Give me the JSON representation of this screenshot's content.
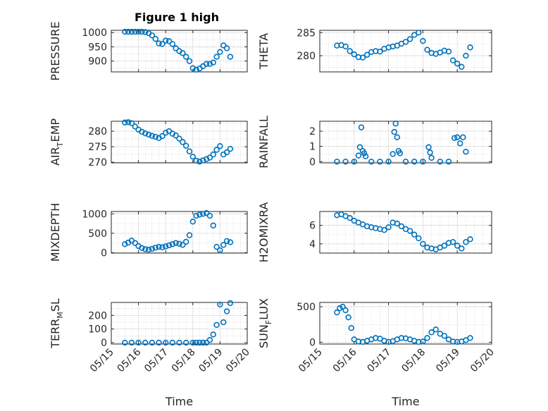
{
  "figure": {
    "title": "Figure 1 high",
    "marker_color": "#0072bd",
    "grid": "on (major + minor)",
    "background": "#ffffff"
  },
  "chart_data": [
    {
      "type": "scatter",
      "id": "pressure",
      "ylabel": "PRESSURE",
      "ylabel_sub": "",
      "ylabel_tail": "",
      "xlabel": "",
      "show_xticklabels": false,
      "ylim": [
        862,
        1008
      ],
      "yticks": [
        900,
        950,
        1000
      ],
      "ytick_labels": [
        "900",
        "950",
        "1000"
      ],
      "x": [
        "2023-05-15T12:00",
        "2023-05-15T15:00",
        "2023-05-15T18:00",
        "2023-05-15T21:00",
        "2023-05-16T00:00",
        "2023-05-16T03:00",
        "2023-05-16T06:00",
        "2023-05-16T09:00",
        "2023-05-16T12:00",
        "2023-05-16T15:00",
        "2023-05-16T18:00",
        "2023-05-16T21:00",
        "2023-05-17T00:00",
        "2023-05-17T03:00",
        "2023-05-17T06:00",
        "2023-05-17T09:00",
        "2023-05-17T12:00",
        "2023-05-17T15:00",
        "2023-05-17T18:00",
        "2023-05-17T21:00",
        "2023-05-18T00:00",
        "2023-05-18T03:00",
        "2023-05-18T06:00",
        "2023-05-18T09:00",
        "2023-05-18T12:00",
        "2023-05-18T15:00",
        "2023-05-18T18:00",
        "2023-05-18T21:00",
        "2023-05-19T00:00",
        "2023-05-19T03:00",
        "2023-05-19T06:00",
        "2023-05-19T09:00"
      ],
      "y": [
        1003,
        1003,
        1003,
        1003,
        1003,
        1003,
        1002,
        998,
        990,
        978,
        962,
        960,
        972,
        970,
        960,
        945,
        935,
        928,
        915,
        900,
        875,
        870,
        874,
        882,
        890,
        890,
        895,
        915,
        932,
        955,
        945,
        915
      ]
    },
    {
      "type": "scatter",
      "id": "theta",
      "ylabel": "THETA",
      "ylabel_sub": "",
      "ylabel_tail": "",
      "xlabel": "",
      "show_xticklabels": false,
      "ylim": [
        276.5,
        285.5
      ],
      "yticks": [
        280,
        285
      ],
      "ytick_labels": [
        "280",
        "285"
      ],
      "x": [
        "2023-05-15T12:00",
        "2023-05-15T15:00",
        "2023-05-15T18:00",
        "2023-05-15T21:00",
        "2023-05-16T00:00",
        "2023-05-16T03:00",
        "2023-05-16T06:00",
        "2023-05-16T09:00",
        "2023-05-16T12:00",
        "2023-05-16T15:00",
        "2023-05-16T18:00",
        "2023-05-16T21:00",
        "2023-05-17T00:00",
        "2023-05-17T03:00",
        "2023-05-17T06:00",
        "2023-05-17T09:00",
        "2023-05-17T12:00",
        "2023-05-17T15:00",
        "2023-05-17T18:00",
        "2023-05-17T21:00",
        "2023-05-18T00:00",
        "2023-05-18T03:00",
        "2023-05-18T06:00",
        "2023-05-18T09:00",
        "2023-05-18T12:00",
        "2023-05-18T15:00",
        "2023-05-18T18:00",
        "2023-05-18T21:00",
        "2023-05-19T00:00",
        "2023-05-19T03:00",
        "2023-05-19T06:00",
        "2023-05-19T09:00"
      ],
      "y": [
        282.2,
        282.3,
        282.0,
        281.0,
        280.3,
        279.7,
        279.6,
        280.2,
        280.8,
        281.0,
        280.9,
        281.5,
        281.8,
        282.0,
        282.2,
        282.6,
        283.0,
        283.6,
        284.5,
        285.0,
        283.2,
        281.3,
        280.6,
        280.4,
        280.7,
        281.1,
        280.9,
        279.0,
        278.3,
        277.6,
        280.0,
        281.8
      ]
    },
    {
      "type": "scatter",
      "id": "air_temp",
      "ylabel": "AIR",
      "ylabel_sub": "T",
      "ylabel_tail": "EMP",
      "xlabel": "",
      "show_xticklabels": false,
      "ylim": [
        269.8,
        283.2
      ],
      "yticks": [
        270,
        275,
        280
      ],
      "ytick_labels": [
        "270",
        "275",
        "280"
      ],
      "x": [
        "2023-05-15T12:00",
        "2023-05-15T15:00",
        "2023-05-15T18:00",
        "2023-05-15T21:00",
        "2023-05-16T00:00",
        "2023-05-16T03:00",
        "2023-05-16T06:00",
        "2023-05-16T09:00",
        "2023-05-16T12:00",
        "2023-05-16T15:00",
        "2023-05-16T18:00",
        "2023-05-16T21:00",
        "2023-05-17T00:00",
        "2023-05-17T03:00",
        "2023-05-17T06:00",
        "2023-05-17T09:00",
        "2023-05-17T12:00",
        "2023-05-17T15:00",
        "2023-05-17T18:00",
        "2023-05-17T21:00",
        "2023-05-18T00:00",
        "2023-05-18T03:00",
        "2023-05-18T06:00",
        "2023-05-18T09:00",
        "2023-05-18T12:00",
        "2023-05-18T15:00",
        "2023-05-18T18:00",
        "2023-05-18T21:00",
        "2023-05-19T00:00",
        "2023-05-19T03:00",
        "2023-05-19T06:00",
        "2023-05-19T09:00"
      ],
      "y": [
        282.8,
        282.9,
        282.6,
        281.5,
        280.5,
        279.8,
        279.3,
        278.9,
        278.5,
        278.2,
        277.8,
        278.4,
        279.5,
        280.0,
        279.2,
        278.6,
        277.6,
        276.5,
        275.3,
        273.5,
        271.8,
        270.5,
        270.2,
        270.6,
        271.0,
        271.5,
        272.5,
        274.0,
        275.2,
        272.5,
        273.2,
        274.3
      ]
    },
    {
      "type": "scatter",
      "id": "rainfall",
      "ylabel": "RAINFALL",
      "ylabel_sub": "",
      "ylabel_tail": "",
      "xlabel": "",
      "show_xticklabels": false,
      "ylim": [
        -0.08,
        2.65
      ],
      "yticks": [
        0,
        1,
        2
      ],
      "ytick_labels": [
        "0",
        "1",
        "2"
      ],
      "x": [
        "2023-05-15T12:00",
        "2023-05-15T18:00",
        "2023-05-16T00:00",
        "2023-05-16T03:00",
        "2023-05-16T04:00",
        "2023-05-16T05:00",
        "2023-05-16T06:00",
        "2023-05-16T07:00",
        "2023-05-16T08:00",
        "2023-05-16T12:00",
        "2023-05-16T18:00",
        "2023-05-17T00:00",
        "2023-05-17T03:00",
        "2023-05-17T04:00",
        "2023-05-17T05:00",
        "2023-05-17T06:00",
        "2023-05-17T07:00",
        "2023-05-17T08:00",
        "2023-05-17T12:00",
        "2023-05-17T18:00",
        "2023-05-18T00:00",
        "2023-05-18T04:00",
        "2023-05-18T05:00",
        "2023-05-18T06:00",
        "2023-05-18T12:00",
        "2023-05-18T18:00",
        "2023-05-18T22:00",
        "2023-05-19T00:00",
        "2023-05-19T02:00",
        "2023-05-19T04:00",
        "2023-05-19T06:00"
      ],
      "y": [
        0,
        0,
        0,
        0.4,
        0.95,
        2.25,
        0.7,
        0.55,
        0.35,
        0,
        0,
        0,
        0.5,
        1.95,
        2.5,
        1.6,
        0.7,
        0.55,
        0,
        0,
        0,
        0.95,
        0.6,
        0.25,
        0,
        0,
        1.55,
        1.6,
        1.2,
        1.6,
        0.65
      ]
    },
    {
      "type": "scatter",
      "id": "mixdepth",
      "ylabel": "MIXDEPTH",
      "ylabel_sub": "",
      "ylabel_tail": "",
      "xlabel": "",
      "show_xticklabels": false,
      "ylim": [
        -10,
        1060
      ],
      "yticks": [
        0,
        500,
        1000
      ],
      "ytick_labels": [
        "0",
        "500",
        "1000"
      ],
      "x": [
        "2023-05-15T12:00",
        "2023-05-15T15:00",
        "2023-05-15T18:00",
        "2023-05-15T21:00",
        "2023-05-16T00:00",
        "2023-05-16T03:00",
        "2023-05-16T06:00",
        "2023-05-16T09:00",
        "2023-05-16T12:00",
        "2023-05-16T15:00",
        "2023-05-16T18:00",
        "2023-05-16T21:00",
        "2023-05-17T00:00",
        "2023-05-17T03:00",
        "2023-05-17T06:00",
        "2023-05-17T09:00",
        "2023-05-17T12:00",
        "2023-05-17T15:00",
        "2023-05-17T18:00",
        "2023-05-17T21:00",
        "2023-05-18T00:00",
        "2023-05-18T03:00",
        "2023-05-18T06:00",
        "2023-05-18T09:00",
        "2023-05-18T12:00",
        "2023-05-18T15:00",
        "2023-05-18T18:00",
        "2023-05-18T21:00",
        "2023-05-19T00:00",
        "2023-05-19T03:00",
        "2023-05-19T06:00",
        "2023-05-19T09:00"
      ],
      "y": [
        220,
        260,
        310,
        250,
        170,
        120,
        90,
        80,
        100,
        130,
        150,
        140,
        160,
        190,
        220,
        250,
        230,
        200,
        280,
        450,
        800,
        950,
        980,
        1000,
        1020,
        950,
        700,
        150,
        60,
        200,
        300,
        270
      ]
    },
    {
      "type": "scatter",
      "id": "h2omixra",
      "ylabel": "H2OMIXRA",
      "ylabel_sub": "",
      "ylabel_tail": "",
      "xlabel": "",
      "show_xticklabels": false,
      "ylim": [
        3.0,
        7.5
      ],
      "yticks": [
        4,
        6
      ],
      "ytick_labels": [
        "4",
        "6"
      ],
      "x": [
        "2023-05-15T12:00",
        "2023-05-15T15:00",
        "2023-05-15T18:00",
        "2023-05-15T21:00",
        "2023-05-16T00:00",
        "2023-05-16T03:00",
        "2023-05-16T06:00",
        "2023-05-16T09:00",
        "2023-05-16T12:00",
        "2023-05-16T15:00",
        "2023-05-16T18:00",
        "2023-05-16T21:00",
        "2023-05-17T00:00",
        "2023-05-17T03:00",
        "2023-05-17T06:00",
        "2023-05-17T09:00",
        "2023-05-17T12:00",
        "2023-05-17T15:00",
        "2023-05-17T18:00",
        "2023-05-17T21:00",
        "2023-05-18T00:00",
        "2023-05-18T03:00",
        "2023-05-18T06:00",
        "2023-05-18T09:00",
        "2023-05-18T12:00",
        "2023-05-18T15:00",
        "2023-05-18T18:00",
        "2023-05-18T21:00",
        "2023-05-19T00:00",
        "2023-05-19T03:00",
        "2023-05-19T06:00",
        "2023-05-19T09:00"
      ],
      "y": [
        7.1,
        7.2,
        7.0,
        6.8,
        6.5,
        6.3,
        6.1,
        5.9,
        5.8,
        5.7,
        5.6,
        5.5,
        5.8,
        6.3,
        6.2,
        5.9,
        5.6,
        5.4,
        5.0,
        4.6,
        4.0,
        3.6,
        3.5,
        3.4,
        3.6,
        3.8,
        4.1,
        4.2,
        3.8,
        3.5,
        4.2,
        4.5
      ]
    },
    {
      "type": "scatter",
      "id": "terr_msl",
      "ylabel": "TERR",
      "ylabel_sub": "M",
      "ylabel_tail": "SL",
      "xlabel": "Time",
      "show_xticklabels": true,
      "ylim": [
        -10,
        295
      ],
      "yticks": [
        0,
        100,
        200
      ],
      "ytick_labels": [
        "0",
        "100",
        "200"
      ],
      "x": [
        "2023-05-15T12:00",
        "2023-05-15T18:00",
        "2023-05-16T00:00",
        "2023-05-16T06:00",
        "2023-05-16T12:00",
        "2023-05-16T18:00",
        "2023-05-17T00:00",
        "2023-05-17T06:00",
        "2023-05-17T12:00",
        "2023-05-17T18:00",
        "2023-05-18T00:00",
        "2023-05-18T03:00",
        "2023-05-18T06:00",
        "2023-05-18T09:00",
        "2023-05-18T12:00",
        "2023-05-18T15:00",
        "2023-05-18T18:00",
        "2023-05-18T21:00",
        "2023-05-19T00:00",
        "2023-05-19T03:00",
        "2023-05-19T06:00",
        "2023-05-19T09:00"
      ],
      "y": [
        0,
        0,
        0,
        0,
        0,
        0,
        0,
        0,
        0,
        0,
        0,
        0,
        0,
        0,
        0,
        20,
        60,
        130,
        280,
        150,
        230,
        290
      ]
    },
    {
      "type": "scatter",
      "id": "sun_flux",
      "ylabel": "SUN",
      "ylabel_sub": "F",
      "ylabel_tail": "LUX",
      "xlabel": "Time",
      "show_xticklabels": true,
      "ylim": [
        -25,
        560
      ],
      "yticks": [
        0,
        500
      ],
      "ytick_labels": [
        "0",
        "500"
      ],
      "x": [
        "2023-05-15T12:00",
        "2023-05-15T14:00",
        "2023-05-15T16:00",
        "2023-05-15T18:00",
        "2023-05-15T20:00",
        "2023-05-15T22:00",
        "2023-05-16T00:00",
        "2023-05-16T03:00",
        "2023-05-16T06:00",
        "2023-05-16T09:00",
        "2023-05-16T12:00",
        "2023-05-16T15:00",
        "2023-05-16T18:00",
        "2023-05-16T21:00",
        "2023-05-17T00:00",
        "2023-05-17T03:00",
        "2023-05-17T06:00",
        "2023-05-17T09:00",
        "2023-05-17T12:00",
        "2023-05-17T15:00",
        "2023-05-17T18:00",
        "2023-05-17T21:00",
        "2023-05-18T00:00",
        "2023-05-18T03:00",
        "2023-05-18T06:00",
        "2023-05-18T09:00",
        "2023-05-18T12:00",
        "2023-05-18T15:00",
        "2023-05-18T18:00",
        "2023-05-18T21:00",
        "2023-05-19T00:00",
        "2023-05-19T03:00",
        "2023-05-19T06:00",
        "2023-05-19T09:00"
      ],
      "y": [
        420,
        480,
        500,
        450,
        350,
        200,
        40,
        10,
        5,
        20,
        40,
        60,
        50,
        20,
        5,
        15,
        40,
        60,
        55,
        40,
        20,
        5,
        10,
        60,
        140,
        180,
        120,
        90,
        40,
        10,
        5,
        10,
        30,
        60
      ]
    }
  ],
  "x_axis": {
    "range": [
      "2023-05-15T00:00",
      "2023-05-20T00:00"
    ],
    "ticks": [
      "2023-05-15",
      "2023-05-16",
      "2023-05-17",
      "2023-05-18",
      "2023-05-19",
      "2023-05-20"
    ],
    "tick_labels": [
      "05/15",
      "05/16",
      "05/17",
      "05/18",
      "05/19",
      "05/20"
    ]
  }
}
